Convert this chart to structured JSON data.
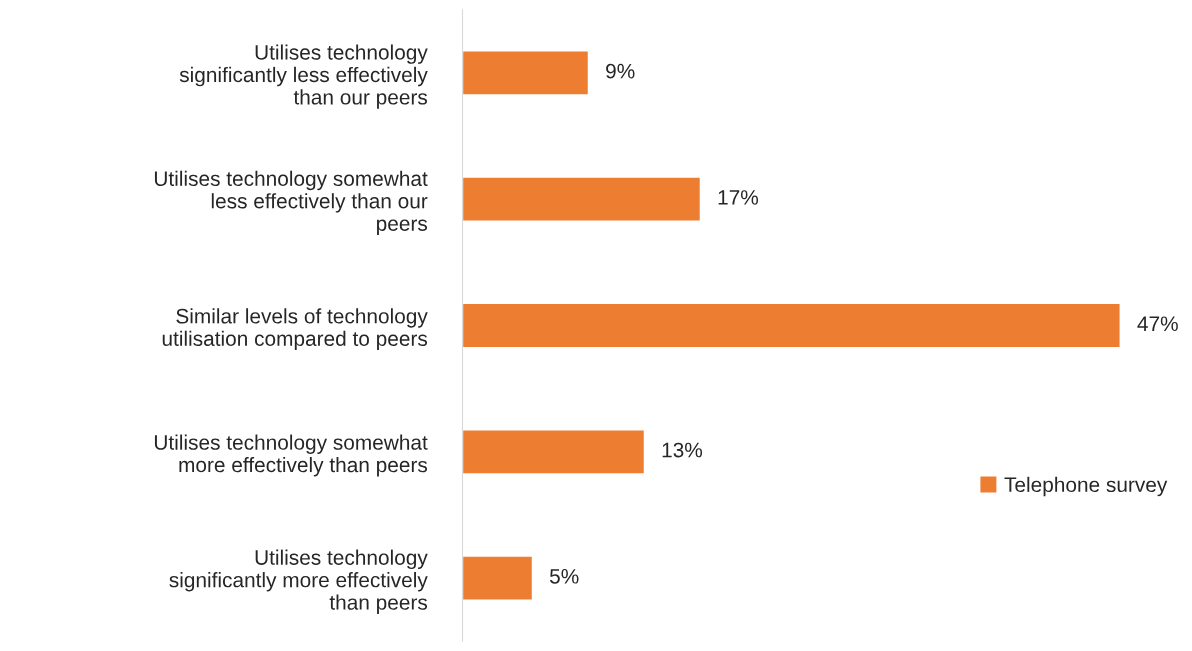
{
  "chart_data": {
    "type": "bar",
    "orientation": "horizontal",
    "categories": [
      "Utilises technology\nsignificantly less effectively\nthan our peers",
      "Utilises technology somewhat\nless effectively than our\npeers",
      "Similar levels of technology\nutilisation compared to peers",
      "Utilises technology somewhat\nmore effectively than peers",
      "Utilises technology\nsignificantly more effectively\nthan peers"
    ],
    "series": [
      {
        "name": "Telephone survey",
        "color": "#ed7d31",
        "values": [
          9,
          17,
          47,
          13,
          5
        ],
        "value_labels": [
          "9%",
          "17%",
          "47%",
          "13%",
          "5%"
        ]
      }
    ],
    "legend": "bottom right",
    "grid": false
  }
}
